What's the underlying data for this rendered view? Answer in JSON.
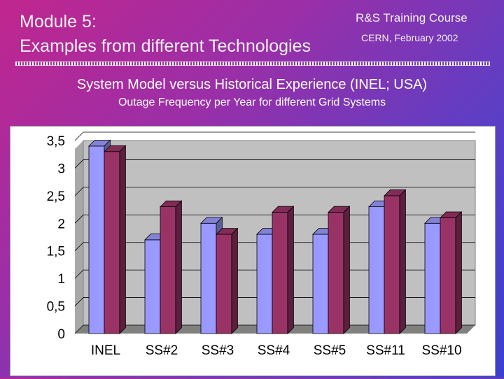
{
  "header": {
    "module": "Module 5:",
    "module_title": "Examples from different Technologies",
    "course": "R&S Training Course",
    "date": "CERN, February 2002"
  },
  "slide": {
    "subtitle": "System Model versus Historical Experience (INEL; USA)",
    "subsubtitle": "Outage Frequency per Year for different Grid Systems"
  },
  "colors": {
    "series_a": "#9999ff",
    "series_b": "#993366",
    "plot_area": "#c0c0c0"
  },
  "chart_data": {
    "type": "bar",
    "title": "",
    "xlabel": "",
    "ylabel": "",
    "categories": [
      "INEL",
      "SS#2",
      "SS#3",
      "SS#4",
      "SS#5",
      "SS#11",
      "SS#10"
    ],
    "series": [
      {
        "values": [
          3.4,
          1.7,
          2.0,
          1.8,
          1.8,
          2.3,
          2.0
        ]
      },
      {
        "values": [
          3.3,
          2.3,
          1.8,
          2.2,
          2.2,
          2.5,
          2.1
        ]
      }
    ],
    "ylim": [
      0,
      3.5
    ],
    "yticks": [
      "0",
      "0,5",
      "1",
      "1,5",
      "2",
      "2,5",
      "3",
      "3,5"
    ],
    "grid": true,
    "legend": "none"
  }
}
